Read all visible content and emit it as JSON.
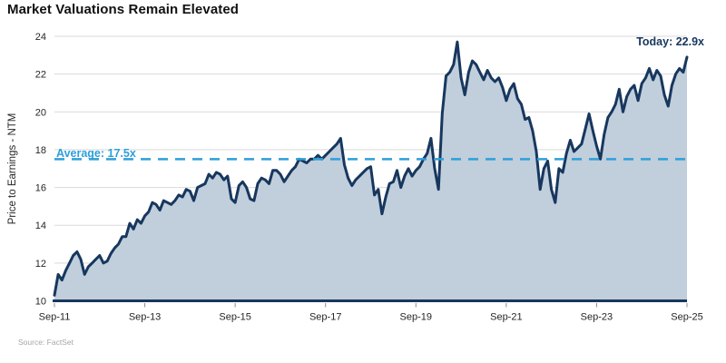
{
  "title": "Market Valuations Remain Elevated",
  "y_axis": {
    "title": "Price to Earnings - NTM"
  },
  "annotations": {
    "average_label": "Average: 17.5x",
    "today_label": "Today: 22.9x"
  },
  "source": "Source: FactSet",
  "colors": {
    "line": "#17375E",
    "fill": "#C1CEDC",
    "average_line": "#2E9FDA",
    "grid": "#D9D9D9",
    "axis": "#17375E",
    "tick": "#8C8C8C"
  },
  "chart_data": {
    "type": "area",
    "title": "Market Valuations Remain Elevated",
    "ylabel": "Price to Earnings - NTM",
    "ylim": [
      10,
      24
    ],
    "ytick_step": 2,
    "x_tick_labels": [
      "Sep-11",
      "Sep-13",
      "Sep-15",
      "Sep-17",
      "Sep-19",
      "Sep-21",
      "Sep-23",
      "Sep-25"
    ],
    "x_tick_every_n_points": 24,
    "x_start": "Sep-2011",
    "x_end": "Sep-2025",
    "frequency": "monthly",
    "average": 17.5,
    "today": 22.9,
    "grid": true,
    "legend": false,
    "values": [
      10.3,
      11.4,
      11.1,
      11.6,
      12.0,
      12.4,
      12.6,
      12.2,
      11.4,
      11.8,
      12.0,
      12.2,
      12.4,
      12.0,
      12.1,
      12.5,
      12.8,
      13.0,
      13.4,
      13.4,
      14.1,
      13.8,
      14.3,
      14.1,
      14.5,
      14.7,
      15.2,
      15.1,
      14.8,
      15.3,
      15.2,
      15.1,
      15.3,
      15.6,
      15.5,
      15.9,
      15.8,
      15.3,
      16.0,
      16.1,
      16.2,
      16.7,
      16.5,
      16.8,
      16.7,
      16.4,
      16.6,
      15.4,
      15.2,
      16.1,
      16.3,
      16.0,
      15.4,
      15.3,
      16.2,
      16.5,
      16.4,
      16.2,
      16.9,
      16.9,
      16.7,
      16.3,
      16.6,
      16.9,
      17.1,
      17.5,
      17.4,
      17.3,
      17.5,
      17.5,
      17.7,
      17.5,
      17.7,
      17.9,
      18.1,
      18.3,
      18.6,
      17.2,
      16.5,
      16.1,
      16.4,
      16.6,
      16.8,
      17.0,
      17.1,
      15.6,
      15.9,
      14.6,
      15.5,
      16.2,
      16.3,
      16.9,
      16.0,
      16.6,
      17.0,
      16.6,
      16.9,
      17.1,
      17.5,
      17.8,
      18.6,
      17.0,
      15.9,
      19.9,
      21.9,
      22.1,
      22.5,
      23.7,
      21.8,
      20.9,
      22.1,
      22.7,
      22.5,
      22.1,
      21.7,
      22.2,
      21.8,
      21.6,
      21.8,
      21.3,
      20.6,
      21.2,
      21.5,
      20.7,
      20.4,
      19.6,
      19.7,
      19.0,
      17.9,
      15.9,
      17.0,
      17.4,
      15.9,
      15.2,
      17.0,
      16.8,
      17.8,
      18.5,
      17.9,
      18.1,
      18.3,
      19.1,
      19.9,
      19.0,
      18.2,
      17.5,
      18.8,
      19.7,
      20.0,
      20.4,
      21.2,
      20.0,
      20.8,
      21.2,
      21.4,
      20.6,
      21.5,
      21.8,
      22.3,
      21.7,
      22.2,
      21.9,
      20.9,
      20.3,
      21.4,
      22.0,
      22.3,
      22.1,
      22.9
    ]
  }
}
